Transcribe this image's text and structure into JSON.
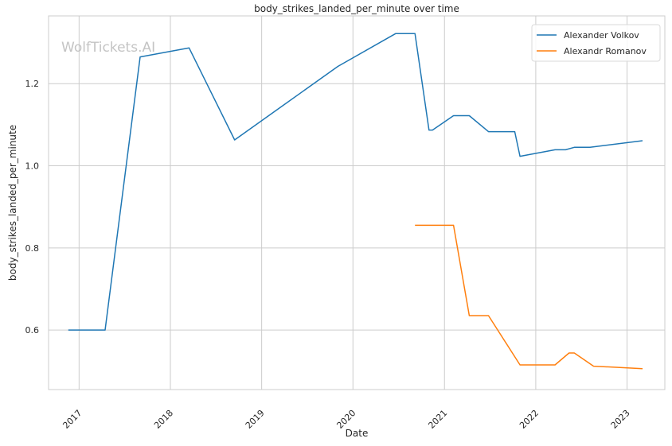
{
  "chart_data": {
    "type": "line",
    "title": "body_strikes_landed_per_minute over time",
    "xlabel": "Date",
    "ylabel": "body_strikes_landed_per_minute",
    "watermark": "WolfTickets.AI",
    "x_ticks": [
      "2017",
      "2018",
      "2019",
      "2020",
      "2021",
      "2022",
      "2023"
    ],
    "y_ticks": [
      "0.6",
      "0.8",
      "1.0",
      "1.2"
    ],
    "xlim": [
      "2016-09-01",
      "2023-06-01"
    ],
    "ylim": [
      0.455,
      1.365
    ],
    "grid": true,
    "legend_position": "top-right",
    "series": [
      {
        "name": "Alexander Volkov",
        "color": "#1f77b4",
        "points": [
          [
            "2016-11-19",
            0.6
          ],
          [
            "2017-04-15",
            0.6
          ],
          [
            "2017-09-02",
            1.265
          ],
          [
            "2018-03-17",
            1.287
          ],
          [
            "2018-09-15",
            1.063
          ],
          [
            "2019-11-02",
            1.242
          ],
          [
            "2020-06-20",
            1.322
          ],
          [
            "2020-09-05",
            1.322
          ],
          [
            "2020-10-31",
            1.087
          ],
          [
            "2020-11-14",
            1.087
          ],
          [
            "2021-02-06",
            1.122
          ],
          [
            "2021-04-10",
            1.122
          ],
          [
            "2021-06-26",
            1.083
          ],
          [
            "2021-10-09",
            1.083
          ],
          [
            "2021-10-30",
            1.023
          ],
          [
            "2022-03-19",
            1.039
          ],
          [
            "2022-04-30",
            1.039
          ],
          [
            "2022-06-04",
            1.045
          ],
          [
            "2022-08-06",
            1.045
          ],
          [
            "2023-03-04",
            1.061
          ]
        ]
      },
      {
        "name": "Alexandr Romanov",
        "color": "#ff7f0e",
        "points": [
          [
            "2020-09-05",
            0.855
          ],
          [
            "2021-02-06",
            0.855
          ],
          [
            "2021-04-10",
            0.635
          ],
          [
            "2021-06-26",
            0.635
          ],
          [
            "2021-10-30",
            0.515
          ],
          [
            "2022-03-19",
            0.515
          ],
          [
            "2022-05-14",
            0.544
          ],
          [
            "2022-06-04",
            0.544
          ],
          [
            "2022-08-20",
            0.512
          ],
          [
            "2023-03-04",
            0.506
          ]
        ]
      }
    ]
  }
}
